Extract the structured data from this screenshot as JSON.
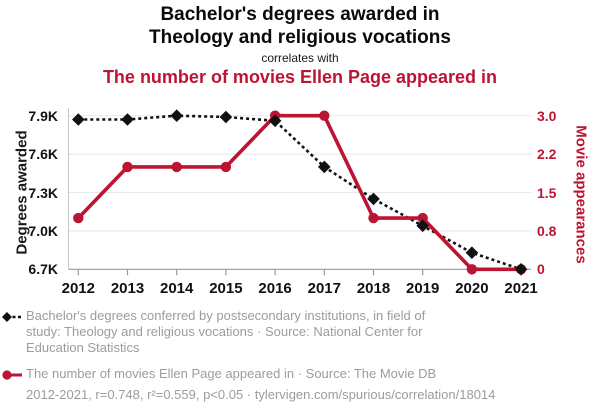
{
  "header": {
    "title_line1": "Bachelor's degrees awarded in",
    "title_line2": "Theology and religious vocations",
    "connector": "correlates with",
    "subtitle": "The number of movies Ellen Page appeared in"
  },
  "colors": {
    "red": "#bb1533",
    "black": "#111111",
    "grid": "#e8e8e8",
    "axis": "#9a9a9a",
    "axis_light": "#c8c8c8",
    "legend_text": "#9c9c9c"
  },
  "chart_data": {
    "type": "line",
    "title": "Bachelor's degrees awarded in Theology and religious vocations correlates with The number of movies Ellen Page appeared in",
    "grid": true,
    "x": [
      2012,
      2013,
      2014,
      2015,
      2016,
      2017,
      2018,
      2019,
      2020,
      2021
    ],
    "x_ticks": [
      "2012",
      "2013",
      "2014",
      "2015",
      "2016",
      "2017",
      "2018",
      "2019",
      "2020",
      "2021"
    ],
    "left_axis": {
      "label": "Degrees awarded",
      "ticks": [
        "7.9K",
        "7.6K",
        "7.3K",
        "7.0K",
        "6.7K"
      ],
      "tick_values": [
        7900,
        7600,
        7300,
        7000,
        6700
      ],
      "range": [
        6700,
        7900
      ]
    },
    "right_axis": {
      "label": "Movie appearances",
      "ticks": [
        "3.0",
        "2.2",
        "1.5",
        "0.8",
        "0"
      ],
      "tick_values": [
        3.0,
        2.25,
        1.5,
        0.75,
        0
      ],
      "range": [
        0,
        3
      ]
    },
    "series": [
      {
        "name": "Bachelor's degrees conferred by postsecondary institutions, in field of study: Theology and religious vocations",
        "axis": "left",
        "color": "#111111",
        "line_style": "dashed",
        "marker": "diamond",
        "values": [
          7870,
          7870,
          7900,
          7890,
          7860,
          7500,
          7250,
          7040,
          6830,
          6700
        ]
      },
      {
        "name": "The number of movies Ellen Page appeared in",
        "axis": "right",
        "color": "#bb1533",
        "line_style": "solid",
        "marker": "circle",
        "values": [
          1,
          2,
          2,
          2,
          3,
          3,
          1,
          1,
          0,
          0
        ]
      }
    ]
  },
  "legend": {
    "entries": [
      {
        "marker": "diamond-dashed",
        "color_key": "black",
        "text": "Bachelor's degrees conferred by postsecondary institutions, in field of study: Theology and religious vocations · Source: National Center for Education Statistics"
      },
      {
        "marker": "circle-line",
        "color_key": "red",
        "text": "The number of movies Ellen Page appeared in · Source: The Movie DB"
      }
    ],
    "footer": "2012-2021, r=0.748, r²=0.559, p<0.05 · tylervigen.com/spurious/correlation/18014"
  }
}
